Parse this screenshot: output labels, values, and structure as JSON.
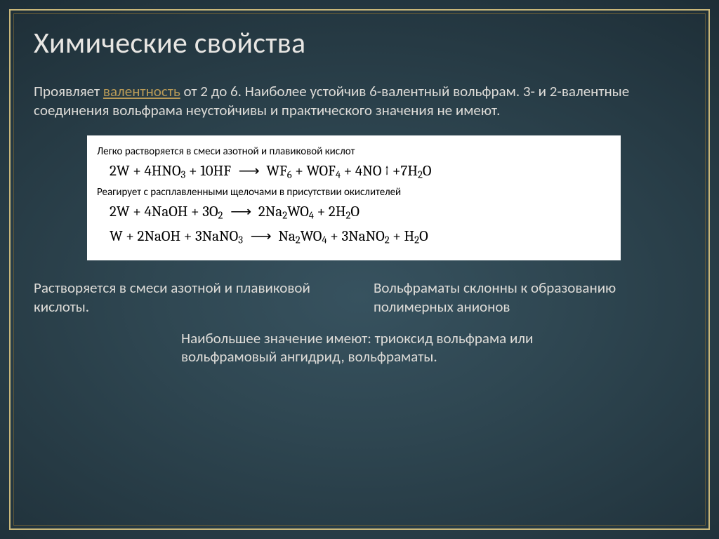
{
  "slide": {
    "background_gradient": {
      "from": "#37525f",
      "to": "#050a0e"
    },
    "frame_outer_color": "#c9b77a",
    "frame_inner_color": "#605838",
    "text_color": "#dedcd8",
    "title_color": "#e8e6e3",
    "link_color": "#b99a57"
  },
  "title": "Химические свойства",
  "intro": {
    "pre": "Проявляет ",
    "link_text": "валентность",
    "post": " от 2 до 6. Наиболее устойчив 6-валентный вольфрам. 3- и 2-валентные соединения вольфрама неустойчивы и практического значения не имеют."
  },
  "reactions": {
    "box_background": "#ffffff",
    "box_text_color": "#000000",
    "caption_fontsize": 15,
    "equation_fontsize": 21,
    "caption1": "Легко растворяется в смеси азотной и плавиковой кислот",
    "eq1_html": "2W + 4HNO<sub>3</sub> + 10HF <span class=\"arrow\">⟶</span> WF<sub>6</sub> + WOF<sub>4</sub> + 4NO ↑ +7H<sub>2</sub>O",
    "caption2": "Реагирует с расплавленными щелочами в присутствии окислителей",
    "eq2_html": "2W + 4NaOH + 3O<sub>2</sub> <span class=\"arrow\">⟶</span> 2Na<sub>2</sub>WO<sub>4</sub> + 2H<sub>2</sub>O",
    "eq3_html": "W + 2NaOH + 3NaNO<sub>3</sub> <span class=\"arrow\">⟶</span> Na<sub>2</sub>WO<sub>4</sub> + 3NaNO<sub>2</sub> + H<sub>2</sub>O"
  },
  "col_left": "Растворяется в смеси азотной и плавиковой кислоты.",
  "col_right": "Вольфраматы склонны к образованию полимерных анионов",
  "bottom": "Наибольшее значение имеют: триоксид вольфрама или вольфрамовый ангидрид, вольфраматы."
}
